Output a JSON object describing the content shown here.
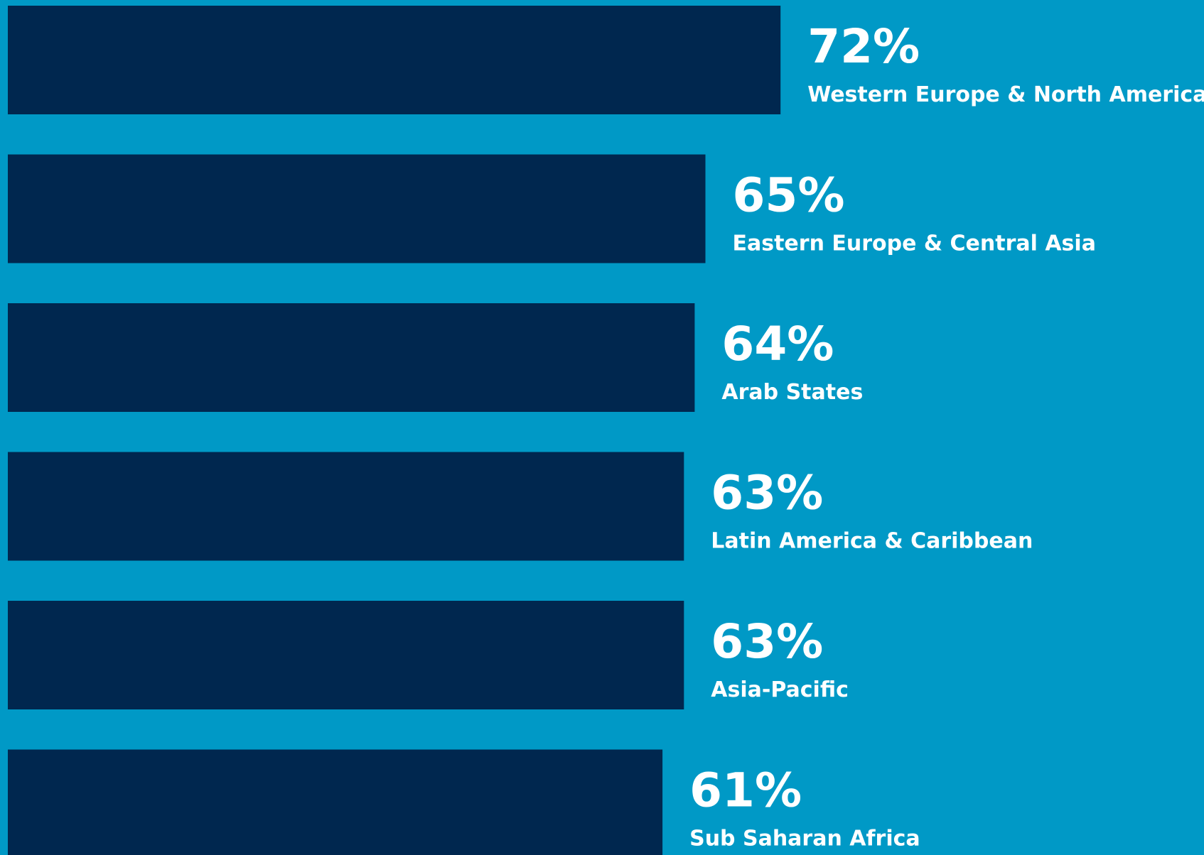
{
  "chart_data": {
    "type": "bar",
    "categories": [
      "Western Europe & North America",
      "Eastern Europe & Central Asia",
      "Arab States",
      "Latin America & Caribbean",
      "Asia-Pacific",
      "Sub Saharan Africa"
    ],
    "values": [
      72,
      65,
      64,
      63,
      63,
      61
    ],
    "value_labels": [
      "72%",
      "65%",
      "64%",
      "63%",
      "63%",
      "61%"
    ],
    "color": "#00274f"
  }
}
